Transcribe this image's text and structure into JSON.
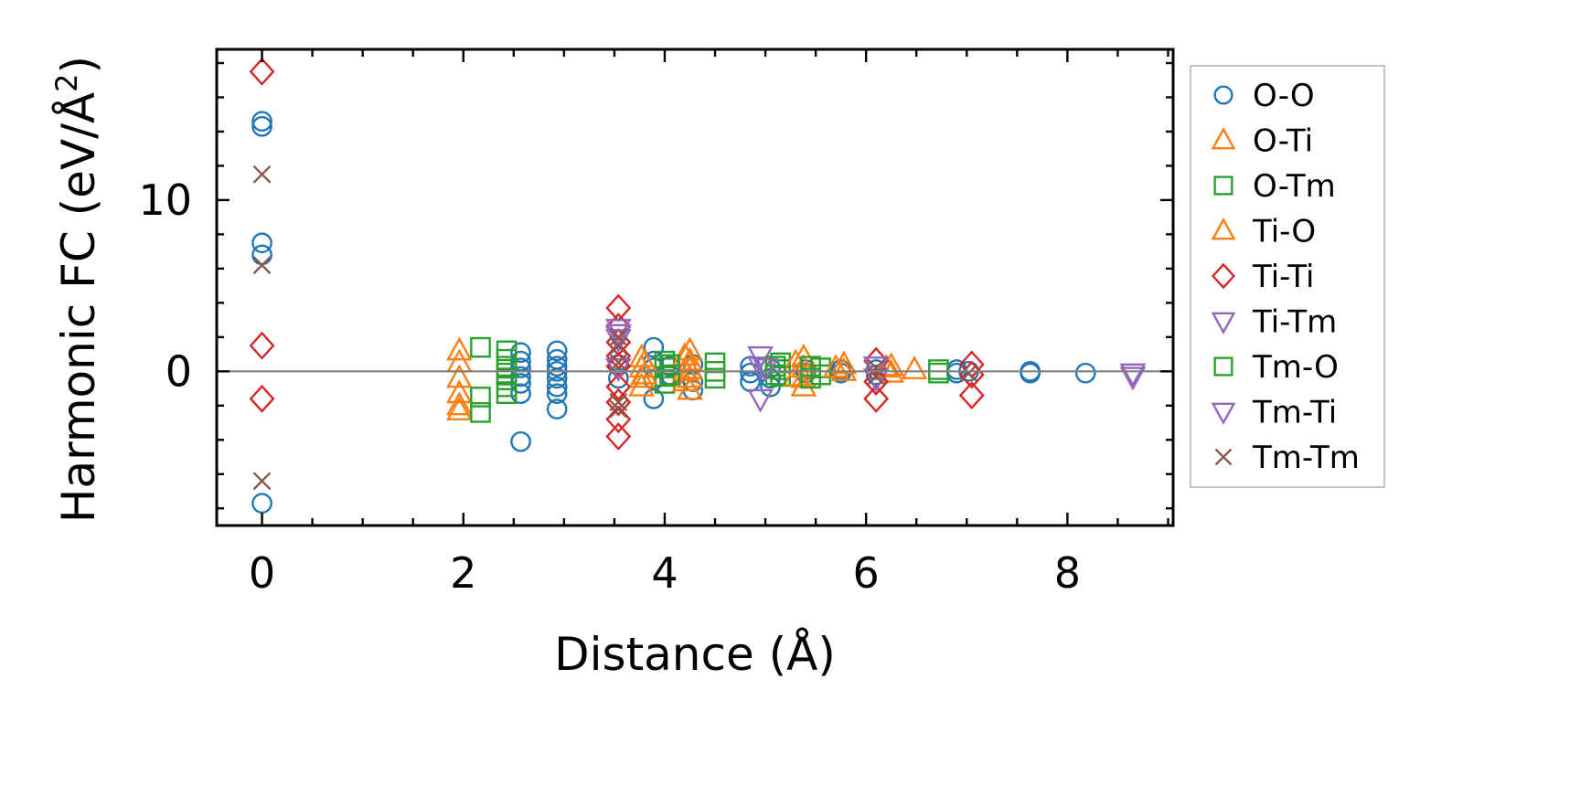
{
  "chart_data": {
    "type": "scatter",
    "xlabel": "Distance (Å)",
    "ylabel": "Harmonic FC (eV/Å²)",
    "ylabel_base": "Harmonic FC (eV/Å",
    "ylabel_sup": "2",
    "ylabel_end": ")",
    "xlim": [
      -0.45,
      9.05
    ],
    "ylim": [
      -9.0,
      18.8
    ],
    "xticks": [
      0,
      2,
      4,
      6,
      8
    ],
    "xtick_labels": [
      "0",
      "2",
      "4",
      "6",
      "8"
    ],
    "yticks": [
      0,
      10
    ],
    "ytick_labels": [
      "0",
      "10"
    ],
    "minor_xtick_step": 0.5,
    "minor_ytick_step": 2,
    "reference_line_y": 0,
    "legend_position": "outside-right",
    "grid": false,
    "series": [
      {
        "name": "O-O",
        "marker": "circle",
        "color": "#1f77b4",
        "points": [
          [
            0,
            14.6
          ],
          [
            0,
            14.3
          ],
          [
            0,
            7.5
          ],
          [
            0,
            6.8
          ],
          [
            0,
            -7.7
          ],
          [
            2.57,
            1.1
          ],
          [
            2.57,
            0.6
          ],
          [
            2.57,
            0.2
          ],
          [
            2.57,
            -0.3
          ],
          [
            2.57,
            -0.7
          ],
          [
            2.57,
            -1.3
          ],
          [
            2.57,
            -4.1
          ],
          [
            2.93,
            1.2
          ],
          [
            2.93,
            0.7
          ],
          [
            2.93,
            0.3
          ],
          [
            2.93,
            0.0
          ],
          [
            2.93,
            -0.4
          ],
          [
            2.93,
            -0.9
          ],
          [
            2.93,
            -1.3
          ],
          [
            2.93,
            -2.2
          ],
          [
            3.54,
            0.4
          ],
          [
            3.54,
            -0.4
          ],
          [
            3.89,
            1.4
          ],
          [
            3.89,
            0.6
          ],
          [
            3.89,
            0.2
          ],
          [
            3.89,
            -0.5
          ],
          [
            3.89,
            -1.6
          ],
          [
            4.05,
            0.3
          ],
          [
            4.05,
            -0.2
          ],
          [
            4.28,
            0.4
          ],
          [
            4.28,
            -0.6
          ],
          [
            4.28,
            -1.1
          ],
          [
            4.85,
            0.3
          ],
          [
            4.85,
            -0.1
          ],
          [
            4.85,
            -0.6
          ],
          [
            5.05,
            0.2
          ],
          [
            5.05,
            -0.4
          ],
          [
            5.05,
            -0.9
          ],
          [
            5.4,
            0.1
          ],
          [
            5.4,
            -0.1
          ],
          [
            5.75,
            0.1
          ],
          [
            5.75,
            -0.1
          ],
          [
            6.1,
            0.1
          ],
          [
            6.1,
            -0.2
          ],
          [
            6.9,
            0.1
          ],
          [
            6.9,
            -0.1
          ],
          [
            7.02,
            0.0
          ],
          [
            7.63,
            0.0
          ],
          [
            7.63,
            -0.1
          ],
          [
            8.18,
            -0.1
          ]
        ]
      },
      {
        "name": "O-Ti",
        "marker": "triangle-up",
        "color": "#ff7f0e",
        "points": [
          [
            1.96,
            1.2
          ],
          [
            1.96,
            0.5
          ],
          [
            1.96,
            -0.4
          ],
          [
            1.96,
            -1.3
          ],
          [
            1.96,
            -2.0
          ],
          [
            1.96,
            -2.3
          ],
          [
            3.77,
            0.8
          ],
          [
            3.77,
            0.2
          ],
          [
            3.77,
            -0.4
          ],
          [
            3.77,
            -0.9
          ],
          [
            4.25,
            1.2
          ],
          [
            4.25,
            0.6
          ],
          [
            4.25,
            0.1
          ],
          [
            4.25,
            -0.4
          ],
          [
            4.25,
            -1.1
          ],
          [
            5.38,
            0.8
          ],
          [
            5.38,
            0.2
          ],
          [
            5.38,
            -0.4
          ],
          [
            5.38,
            -0.9
          ],
          [
            5.78,
            0.4
          ],
          [
            5.78,
            0.0
          ],
          [
            6.25,
            0.3
          ],
          [
            6.25,
            -0.1
          ],
          [
            6.48,
            0.1
          ]
        ]
      },
      {
        "name": "O-Tm",
        "marker": "square",
        "color": "#2ca02c",
        "points": [
          [
            2.17,
            1.4
          ],
          [
            2.17,
            -1.5
          ],
          [
            2.17,
            -2.4
          ],
          [
            2.43,
            1.2
          ],
          [
            2.43,
            0.7
          ],
          [
            2.43,
            0.3
          ],
          [
            2.43,
            -0.1
          ],
          [
            2.43,
            -0.5
          ],
          [
            2.43,
            -0.9
          ],
          [
            2.43,
            -1.3
          ],
          [
            4.0,
            0.6
          ],
          [
            4.0,
            0.2
          ],
          [
            4.0,
            -0.3
          ],
          [
            4.0,
            -0.7
          ],
          [
            4.5,
            0.5
          ],
          [
            4.5,
            0.0
          ],
          [
            4.5,
            -0.4
          ],
          [
            5.15,
            0.5
          ],
          [
            5.15,
            0.1
          ],
          [
            5.15,
            -0.3
          ],
          [
            5.55,
            0.2
          ],
          [
            5.55,
            -0.2
          ],
          [
            6.72,
            0.1
          ],
          [
            6.72,
            -0.1
          ]
        ]
      },
      {
        "name": "Ti-O",
        "marker": "triangle-up",
        "color": "#ff7f0e",
        "points": [
          [
            3.8,
            0.5
          ],
          [
            3.8,
            -0.2
          ],
          [
            4.2,
            0.9
          ],
          [
            4.2,
            0.0
          ],
          [
            4.2,
            -0.6
          ],
          [
            5.3,
            0.5
          ],
          [
            5.3,
            -0.3
          ],
          [
            5.7,
            0.2
          ],
          [
            6.2,
            0.2
          ]
        ]
      },
      {
        "name": "Ti-Ti",
        "marker": "diamond",
        "color": "#d62728",
        "points": [
          [
            0,
            17.5
          ],
          [
            0,
            1.5
          ],
          [
            0,
            -1.6
          ],
          [
            3.54,
            3.7
          ],
          [
            3.54,
            2.6
          ],
          [
            3.54,
            1.7
          ],
          [
            3.54,
            0.9
          ],
          [
            3.54,
            0.3
          ],
          [
            3.54,
            -0.9
          ],
          [
            3.54,
            -1.8
          ],
          [
            3.54,
            -2.8
          ],
          [
            3.54,
            -3.8
          ],
          [
            6.1,
            0.6
          ],
          [
            6.1,
            -0.6
          ],
          [
            6.1,
            -1.6
          ],
          [
            7.05,
            0.4
          ],
          [
            7.05,
            -0.2
          ],
          [
            7.05,
            -1.4
          ]
        ]
      },
      {
        "name": "Ti-Tm",
        "marker": "triangle-down",
        "color": "#9467bd",
        "points": [
          [
            3.54,
            2.5
          ],
          [
            3.54,
            1.9
          ],
          [
            4.95,
            0.9
          ],
          [
            4.95,
            0.3
          ],
          [
            4.95,
            -1.6
          ],
          [
            6.1,
            0.3
          ],
          [
            8.65,
            -0.1
          ],
          [
            8.65,
            -0.3
          ]
        ]
      },
      {
        "name": "Tm-O",
        "marker": "square",
        "color": "#2ca02c",
        "points": [
          [
            4.05,
            0.4
          ],
          [
            4.05,
            -0.2
          ],
          [
            5.1,
            0.3
          ],
          [
            5.1,
            -0.2
          ],
          [
            5.45,
            0.3
          ],
          [
            5.45,
            -0.4
          ]
        ]
      },
      {
        "name": "Tm-Ti",
        "marker": "triangle-down",
        "color": "#9467bd",
        "points": [
          [
            3.54,
            2.2
          ],
          [
            3.54,
            0.2
          ],
          [
            5.0,
            0.2
          ],
          [
            6.1,
            -0.4
          ]
        ]
      },
      {
        "name": "Tm-Tm",
        "marker": "x",
        "color": "#8c564b",
        "points": [
          [
            0,
            11.5
          ],
          [
            0,
            6.2
          ],
          [
            0,
            -6.4
          ],
          [
            3.54,
            2.0
          ],
          [
            3.54,
            1.5
          ],
          [
            3.54,
            0.5
          ],
          [
            3.54,
            -1.8
          ],
          [
            3.54,
            -2.2
          ],
          [
            6.1,
            0.2
          ],
          [
            6.1,
            -0.3
          ],
          [
            7.02,
            -0.1
          ]
        ]
      }
    ]
  }
}
